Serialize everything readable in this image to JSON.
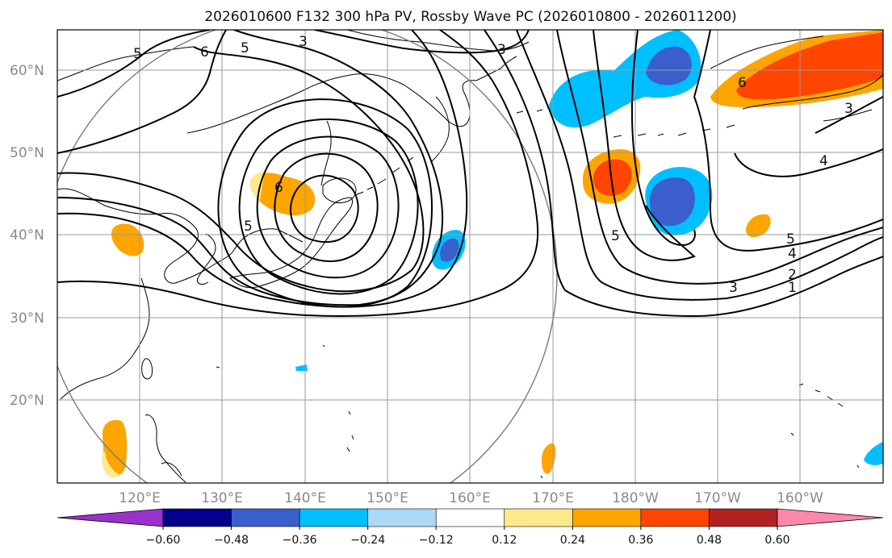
{
  "title": "2026010600 F132 300 hPa PV, Rossby Wave PC (2026010800 - 2026011200)",
  "lat_labels": [
    "20°N",
    "30°N",
    "40°N",
    "50°N",
    "60°N"
  ],
  "lon_labels": [
    "120°E",
    "130°E",
    "140°E",
    "150°E",
    "160°E",
    "170°E",
    "180°W",
    "170°W",
    "160°W"
  ],
  "colorbar": {
    "ticks": [
      "−0.60",
      "−0.48",
      "−0.36",
      "−0.24",
      "−0.12",
      "0.12",
      "0.24",
      "0.36",
      "0.48",
      "0.60"
    ],
    "colors": [
      "#9932cc",
      "#00008b",
      "#3a5fcd",
      "#00bfff",
      "#add8f7",
      "#ffffff",
      "#fee98b",
      "#ffa500",
      "#ff4500",
      "#b22222",
      "#ff88aa"
    ]
  },
  "contour_labels": [
    "5",
    "6",
    "5",
    "3",
    "3",
    "6",
    "5",
    "5",
    "3",
    "6",
    "3",
    "4",
    "5",
    "4",
    "3",
    "2",
    "1"
  ]
}
